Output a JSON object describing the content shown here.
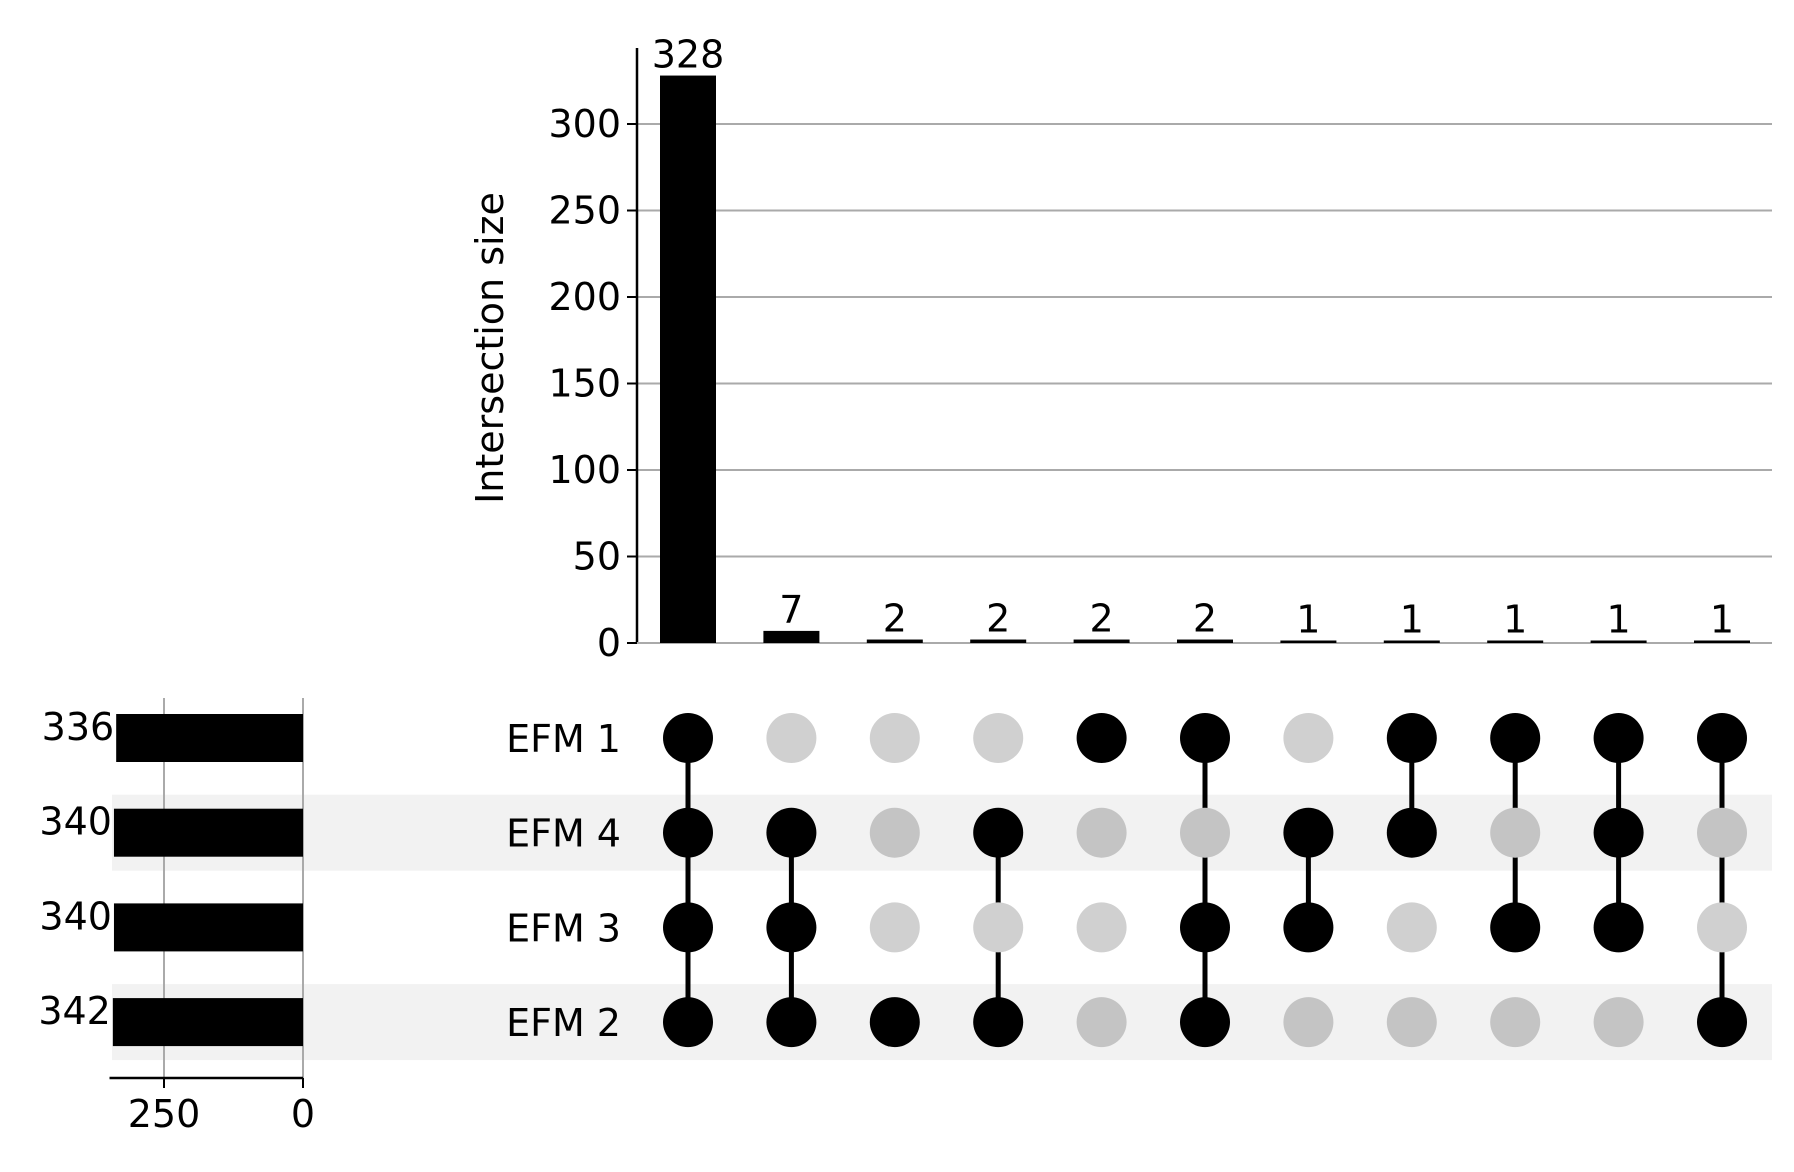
{
  "chart_data": {
    "type": "upset",
    "title": "",
    "intersection_axis": {
      "label": "Intersection size",
      "ylim": [
        0,
        345
      ],
      "ticks": [
        0,
        50,
        100,
        150,
        200,
        250,
        300
      ],
      "tick_labels": [
        "0",
        "50",
        "100",
        "150",
        "200",
        "250",
        "300"
      ],
      "grid": true
    },
    "set_size_axis": {
      "label": "",
      "xlim_reversed": [
        0,
        360
      ],
      "ticks": [
        250,
        0
      ],
      "tick_labels": [
        "250",
        "0"
      ],
      "grid": true
    },
    "sets": [
      {
        "name": "EFM 1",
        "size": 336,
        "size_label": "336"
      },
      {
        "name": "EFM 4",
        "size": 340,
        "size_label": "340"
      },
      {
        "name": "EFM 3",
        "size": 340,
        "size_label": "340"
      },
      {
        "name": "EFM 2",
        "size": 342,
        "size_label": "342"
      }
    ],
    "intersections": [
      {
        "size": 328,
        "label": "328",
        "members": [
          "EFM 1",
          "EFM 4",
          "EFM 3",
          "EFM 2"
        ]
      },
      {
        "size": 7,
        "label": "7",
        "members": [
          "EFM 4",
          "EFM 3",
          "EFM 2"
        ]
      },
      {
        "size": 2,
        "label": "2",
        "members": [
          "EFM 2"
        ]
      },
      {
        "size": 2,
        "label": "2",
        "members": [
          "EFM 4",
          "EFM 2"
        ]
      },
      {
        "size": 2,
        "label": "2",
        "members": [
          "EFM 1"
        ]
      },
      {
        "size": 2,
        "label": "2",
        "members": [
          "EFM 1",
          "EFM 3",
          "EFM 2"
        ]
      },
      {
        "size": 1,
        "label": "1",
        "members": [
          "EFM 4",
          "EFM 3"
        ]
      },
      {
        "size": 1,
        "label": "1",
        "members": [
          "EFM 1",
          "EFM 4"
        ]
      },
      {
        "size": 1,
        "label": "1",
        "members": [
          "EFM 1",
          "EFM 3"
        ]
      },
      {
        "size": 1,
        "label": "1",
        "members": [
          "EFM 1",
          "EFM 4",
          "EFM 3"
        ]
      },
      {
        "size": 1,
        "label": "1",
        "members": [
          "EFM 1",
          "EFM 2"
        ]
      }
    ],
    "colors": {
      "bar": "#000000",
      "dot_active": "#000000",
      "dot_inactive_light": "#d0d0d0",
      "dot_inactive_shaded": "#c4c4c4",
      "row_shade": "#f2f2f2",
      "grid": "#aaaaaa"
    }
  }
}
